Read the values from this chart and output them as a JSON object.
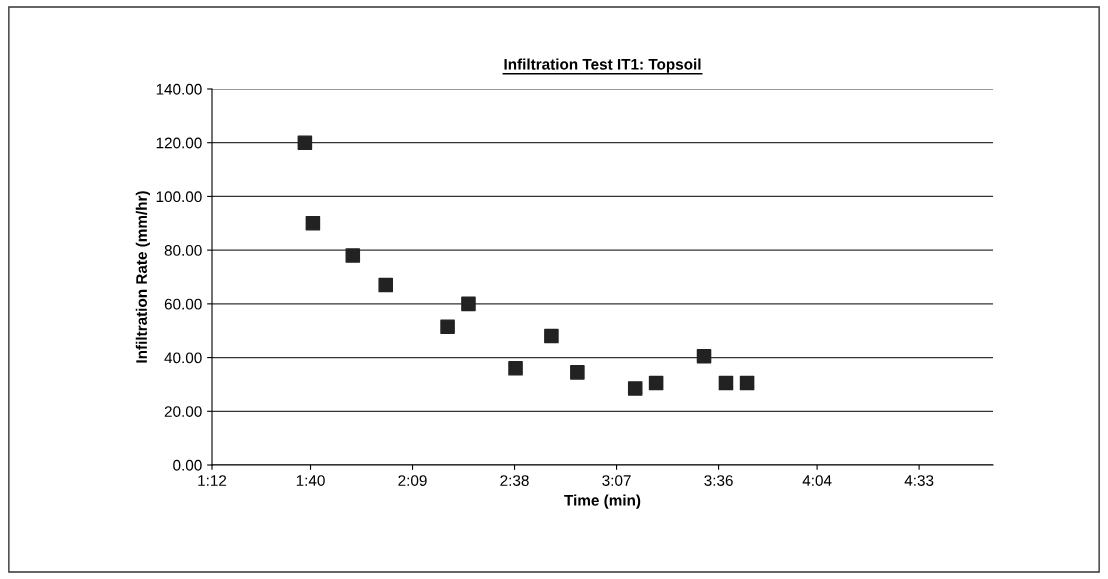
{
  "chart_data": {
    "type": "scatter",
    "title": "Infiltration Test IT1: Topsoil",
    "xlabel": "Time (min)",
    "ylabel": "Infiltration Rate (mm/hr)",
    "x": [
      1.64,
      1.678,
      1.867,
      2.023,
      2.316,
      2.415,
      2.638,
      2.808,
      2.931,
      3.205,
      3.304,
      3.531,
      3.635,
      3.735
    ],
    "series": [
      {
        "color": "#222222",
        "values": [
          120,
          90,
          78,
          67,
          51.5,
          60,
          36,
          48,
          34.5,
          28.5,
          30.5,
          40.5,
          30.5,
          30.5
        ]
      }
    ],
    "xlim": [
      1.2,
      4.9
    ],
    "xticks": [
      {
        "value": 1.2,
        "label": "1:12"
      },
      {
        "value": 1.6667,
        "label": "1:40"
      },
      {
        "value": 2.15,
        "label": "2:09"
      },
      {
        "value": 2.6333,
        "label": "2:38"
      },
      {
        "value": 3.1167,
        "label": "3:07"
      },
      {
        "value": 3.6,
        "label": "3:36"
      },
      {
        "value": 4.0667,
        "label": "4:04"
      },
      {
        "value": 4.55,
        "label": "4:33"
      }
    ],
    "ylim": [
      0,
      140
    ],
    "yticks": [
      {
        "value": 0,
        "label": "0.00"
      },
      {
        "value": 20,
        "label": "20.00"
      },
      {
        "value": 40,
        "label": "40.00"
      },
      {
        "value": 60,
        "label": "60.00"
      },
      {
        "value": 80,
        "label": "80.00"
      },
      {
        "value": 100,
        "label": "100.00"
      },
      {
        "value": 120,
        "label": "120.00"
      },
      {
        "value": 140,
        "label": "140.00"
      }
    ],
    "grid": "y",
    "marker": "square",
    "legend": false
  }
}
